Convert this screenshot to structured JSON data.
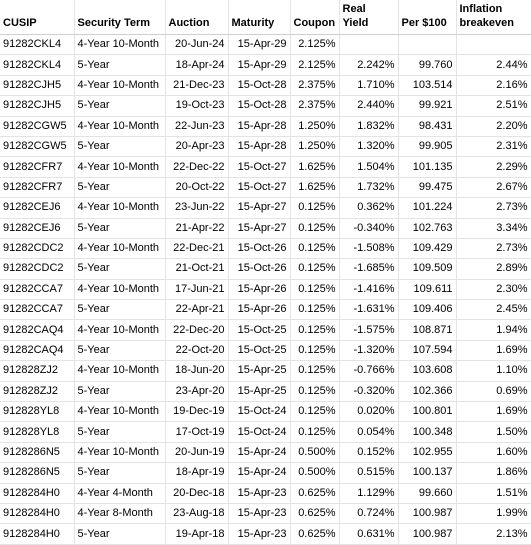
{
  "table": {
    "headers": {
      "cusip": "CUSIP",
      "term": "Security Term",
      "auction": "Auction",
      "maturity": "Maturity",
      "coupon": "Coupon",
      "yield_line1": "Real",
      "yield_line2": "Yield",
      "per100": "Per $100",
      "breakeven_line1": "Inflation",
      "breakeven_line2": "breakeven"
    },
    "rows": [
      {
        "cusip": "91282CKL4",
        "term": "4-Year 10-Month",
        "auction": "20-Jun-24",
        "maturity": "15-Apr-29",
        "coupon": "2.125%",
        "yield": "",
        "per100": "",
        "breakeven": ""
      },
      {
        "cusip": "91282CKL4",
        "term": "5-Year",
        "auction": "18-Apr-24",
        "maturity": "15-Apr-29",
        "coupon": "2.125%",
        "yield": "2.242%",
        "per100": "99.760",
        "breakeven": "2.44%"
      },
      {
        "cusip": "91282CJH5",
        "term": "4-Year 10-Month",
        "auction": "21-Dec-23",
        "maturity": "15-Oct-28",
        "coupon": "2.375%",
        "yield": "1.710%",
        "per100": "103.514",
        "breakeven": "2.16%"
      },
      {
        "cusip": "91282CJH5",
        "term": "5-Year",
        "auction": "19-Oct-23",
        "maturity": "15-Oct-28",
        "coupon": "2.375%",
        "yield": "2.440%",
        "per100": "99.921",
        "breakeven": "2.51%"
      },
      {
        "cusip": "91282CGW5",
        "term": "4-Year 10-Month",
        "auction": "22-Jun-23",
        "maturity": "15-Apr-28",
        "coupon": "1.250%",
        "yield": "1.832%",
        "per100": "98.431",
        "breakeven": "2.20%"
      },
      {
        "cusip": "91282CGW5",
        "term": "5-Year",
        "auction": "20-Apr-23",
        "maturity": "15-Apr-28",
        "coupon": "1.250%",
        "yield": "1.320%",
        "per100": "99.905",
        "breakeven": "2.31%"
      },
      {
        "cusip": "91282CFR7",
        "term": "4-Year 10-Month",
        "auction": "22-Dec-22",
        "maturity": "15-Oct-27",
        "coupon": "1.625%",
        "yield": "1.504%",
        "per100": "101.135",
        "breakeven": "2.29%"
      },
      {
        "cusip": "91282CFR7",
        "term": "5-Year",
        "auction": "20-Oct-22",
        "maturity": "15-Oct-27",
        "coupon": "1.625%",
        "yield": "1.732%",
        "per100": "99.475",
        "breakeven": "2.67%"
      },
      {
        "cusip": "91282CEJ6",
        "term": "4-Year 10-Month",
        "auction": "23-Jun-22",
        "maturity": "15-Apr-27",
        "coupon": "0.125%",
        "yield": "0.362%",
        "per100": "101.224",
        "breakeven": "2.73%"
      },
      {
        "cusip": "91282CEJ6",
        "term": "5-Year",
        "auction": "21-Apr-22",
        "maturity": "15-Apr-27",
        "coupon": "0.125%",
        "yield": "-0.340%",
        "per100": "102.763",
        "breakeven": "3.34%"
      },
      {
        "cusip": "91282CDC2",
        "term": "4-Year 10-Month",
        "auction": "22-Dec-21",
        "maturity": "15-Oct-26",
        "coupon": "0.125%",
        "yield": "-1.508%",
        "per100": "109.429",
        "breakeven": "2.73%"
      },
      {
        "cusip": "91282CDC2",
        "term": "5-Year",
        "auction": "21-Oct-21",
        "maturity": "15-Oct-26",
        "coupon": "0.125%",
        "yield": "-1.685%",
        "per100": "109.509",
        "breakeven": "2.89%"
      },
      {
        "cusip": "91282CCA7",
        "term": "4-Year 10-Month",
        "auction": "17-Jun-21",
        "maturity": "15-Apr-26",
        "coupon": "0.125%",
        "yield": "-1.416%",
        "per100": "109.611",
        "breakeven": "2.30%"
      },
      {
        "cusip": "91282CCA7",
        "term": "5-Year",
        "auction": "22-Apr-21",
        "maturity": "15-Apr-26",
        "coupon": "0.125%",
        "yield": "-1.631%",
        "per100": "109.406",
        "breakeven": "2.45%"
      },
      {
        "cusip": "91282CAQ4",
        "term": "4-Year 10-Month",
        "auction": "22-Dec-20",
        "maturity": "15-Oct-25",
        "coupon": "0.125%",
        "yield": "-1.575%",
        "per100": "108.871",
        "breakeven": "1.94%"
      },
      {
        "cusip": "91282CAQ4",
        "term": "5-Year",
        "auction": "22-Oct-20",
        "maturity": "15-Oct-25",
        "coupon": "0.125%",
        "yield": "-1.320%",
        "per100": "107.594",
        "breakeven": "1.69%"
      },
      {
        "cusip": "912828ZJ2",
        "term": "4-Year 10-Month",
        "auction": "18-Jun-20",
        "maturity": "15-Apr-25",
        "coupon": "0.125%",
        "yield": "-0.766%",
        "per100": "103.608",
        "breakeven": "1.10%"
      },
      {
        "cusip": "912828ZJ2",
        "term": "5-Year",
        "auction": "23-Apr-20",
        "maturity": "15-Apr-25",
        "coupon": "0.125%",
        "yield": "-0.320%",
        "per100": "102.366",
        "breakeven": "0.69%"
      },
      {
        "cusip": "912828YL8",
        "term": "4-Year 10-Month",
        "auction": "19-Dec-19",
        "maturity": "15-Oct-24",
        "coupon": "0.125%",
        "yield": "0.020%",
        "per100": "100.801",
        "breakeven": "1.69%"
      },
      {
        "cusip": "912828YL8",
        "term": "5-Year",
        "auction": "17-Oct-19",
        "maturity": "15-Oct-24",
        "coupon": "0.125%",
        "yield": "0.054%",
        "per100": "100.348",
        "breakeven": "1.50%"
      },
      {
        "cusip": "9128286N5",
        "term": "4-Year 10-Month",
        "auction": "20-Jun-19",
        "maturity": "15-Apr-24",
        "coupon": "0.500%",
        "yield": "0.152%",
        "per100": "102.955",
        "breakeven": "1.60%"
      },
      {
        "cusip": "9128286N5",
        "term": "5-Year",
        "auction": "18-Apr-19",
        "maturity": "15-Apr-24",
        "coupon": "0.500%",
        "yield": "0.515%",
        "per100": "100.137",
        "breakeven": "1.86%"
      },
      {
        "cusip": "9128284H0",
        "term": "4-Year 4-Month",
        "auction": "20-Dec-18",
        "maturity": "15-Apr-23",
        "coupon": "0.625%",
        "yield": "1.129%",
        "per100": "99.660",
        "breakeven": "1.51%"
      },
      {
        "cusip": "9128284H0",
        "term": "4-Year 8-Month",
        "auction": "23-Aug-18",
        "maturity": "15-Apr-23",
        "coupon": "0.625%",
        "yield": "0.724%",
        "per100": "100.987",
        "breakeven": "1.99%"
      },
      {
        "cusip": "9128284H0",
        "term": "5-Year",
        "auction": "19-Apr-18",
        "maturity": "15-Apr-23",
        "coupon": "0.625%",
        "yield": "0.631%",
        "per100": "100.987",
        "breakeven": "2.13%"
      }
    ]
  }
}
